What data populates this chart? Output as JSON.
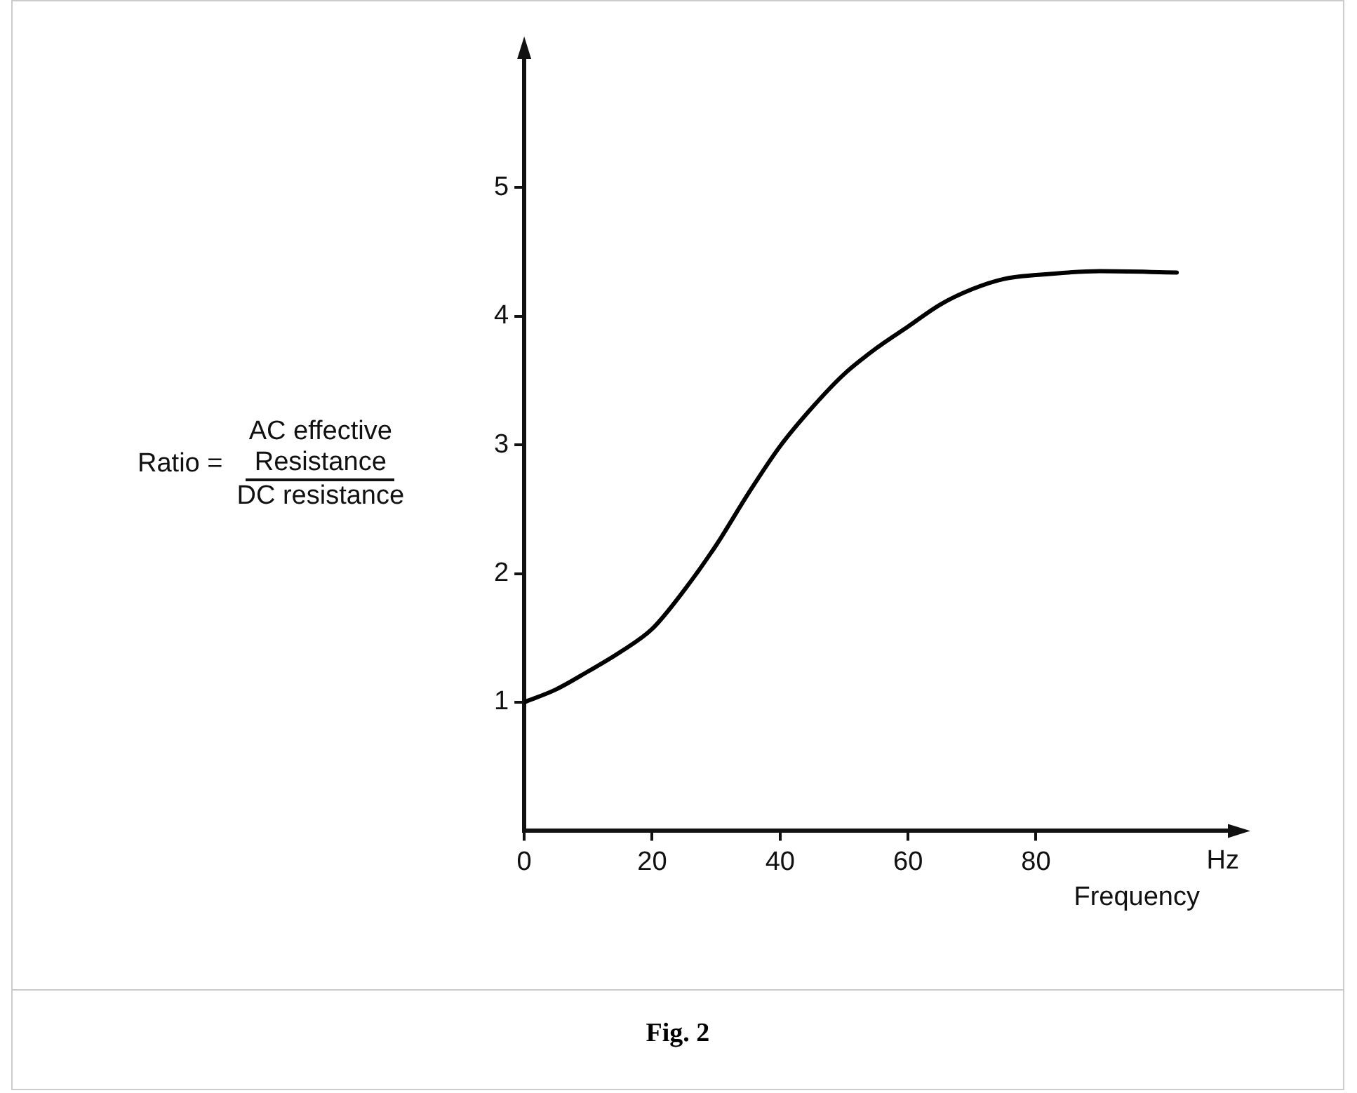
{
  "chart_data": {
    "type": "line",
    "title": "Fig. 2",
    "xlabel": "Frequency",
    "ylabel": "Ratio =\nAC effective Resistance\nDC resistance",
    "annotations": [
      "Hz"
    ],
    "x": [
      0,
      5,
      10,
      15,
      20,
      25,
      30,
      35,
      40,
      45,
      50,
      55,
      60,
      65,
      70,
      75,
      80,
      90,
      102
    ],
    "series": [
      {
        "color": "#000000",
        "values": [
          1.0,
          1.1,
          1.24,
          1.39,
          1.57,
          1.87,
          2.22,
          2.62,
          2.99,
          3.29,
          3.55,
          3.75,
          3.92,
          4.09,
          4.21,
          4.29,
          4.32,
          4.35,
          4.34
        ]
      }
    ],
    "xlim": [
      0,
      110
    ],
    "ylim": [
      0,
      6
    ],
    "xticks": [
      0,
      20,
      40,
      60,
      80
    ],
    "yticks": [
      1,
      2,
      3,
      4,
      5
    ],
    "grid": false,
    "legend": false,
    "marker": "none",
    "line_style": "solid"
  }
}
